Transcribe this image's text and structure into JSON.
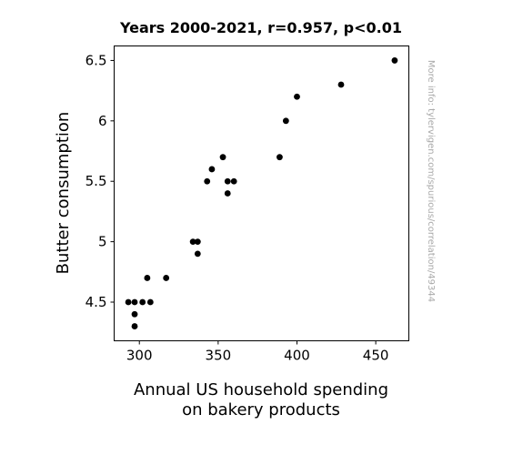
{
  "chart_data": {
    "type": "scatter",
    "title": "Years 2000-2021, r=0.957, p<0.01",
    "xlabel_lines": [
      "Annual US household spending",
      "on bakery products"
    ],
    "ylabel": "Butter consumption",
    "watermark": "More info: tylervigen.com/spurious/correlation/49344",
    "xlim": [
      284,
      471
    ],
    "ylim": [
      4.18,
      6.62
    ],
    "xticks": [
      300,
      350,
      400,
      450
    ],
    "xtick_labels": [
      "300",
      "350",
      "400",
      "450"
    ],
    "yticks": [
      4.5,
      5,
      5.5,
      6,
      6.5
    ],
    "ytick_labels": [
      "4.5",
      "5",
      "5.5",
      "6",
      "6.5"
    ],
    "grid": false,
    "point_color": "#000000",
    "points": [
      {
        "x": 293,
        "y": 4.5
      },
      {
        "x": 297,
        "y": 4.5
      },
      {
        "x": 302,
        "y": 4.5
      },
      {
        "x": 307,
        "y": 4.5
      },
      {
        "x": 297,
        "y": 4.4
      },
      {
        "x": 297,
        "y": 4.3
      },
      {
        "x": 305,
        "y": 4.7
      },
      {
        "x": 317,
        "y": 4.7
      },
      {
        "x": 334,
        "y": 5.0
      },
      {
        "x": 337,
        "y": 5.0
      },
      {
        "x": 337,
        "y": 4.9
      },
      {
        "x": 343,
        "y": 5.5
      },
      {
        "x": 346,
        "y": 5.6
      },
      {
        "x": 353,
        "y": 5.7
      },
      {
        "x": 356,
        "y": 5.5
      },
      {
        "x": 356,
        "y": 5.4
      },
      {
        "x": 360,
        "y": 5.5
      },
      {
        "x": 389,
        "y": 5.7
      },
      {
        "x": 393,
        "y": 6.0
      },
      {
        "x": 400,
        "y": 6.2
      },
      {
        "x": 428,
        "y": 6.3
      },
      {
        "x": 462,
        "y": 6.5
      }
    ]
  }
}
